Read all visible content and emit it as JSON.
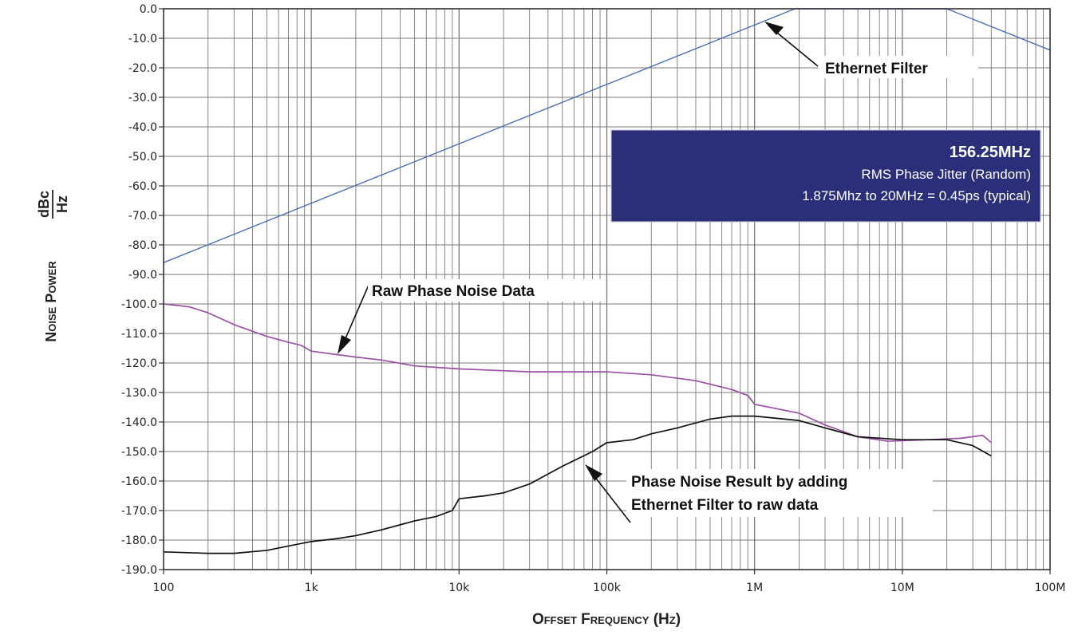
{
  "chart_data": {
    "type": "line",
    "xscale": "log",
    "xlim": [
      100,
      100000000
    ],
    "ylim": [
      -190,
      0
    ],
    "grid": true,
    "xlabel": "Offset Frequency (Hz)",
    "ylabel_main": "Noise Power",
    "ylabel_unit_num": "dBc",
    "ylabel_unit_den": "Hz",
    "x_tick_values": [
      100,
      1000,
      10000,
      100000,
      1000000,
      10000000,
      100000000
    ],
    "x_tick_labels": [
      "100",
      "1k",
      "10k",
      "100k",
      "1M",
      "10M",
      "100M"
    ],
    "y_tick_values": [
      0,
      -10,
      -20,
      -30,
      -40,
      -50,
      -60,
      -70,
      -80,
      -90,
      -100,
      -110,
      -120,
      -130,
      -140,
      -150,
      -160,
      -170,
      -180,
      -190
    ],
    "y_tick_labels": [
      "0.0",
      "-10.0",
      "-20.0",
      "-30.0",
      "-40.0",
      "-50.0",
      "-60.0",
      "-70.0",
      "-80.0",
      "-90.0",
      "-100.0",
      "-110.0",
      "-120.0",
      "-130.0",
      "-140.0",
      "-150.0",
      "-160.0",
      "-170.0",
      "-180.0",
      "-190.0"
    ],
    "series": [
      {
        "color": "#4a6fb5",
        "points": [
          [
            100,
            -86
          ],
          [
            1875000,
            0
          ],
          [
            20000000,
            0
          ],
          [
            100000000,
            -14
          ]
        ]
      },
      {
        "color": "#9b4fa6",
        "points": [
          [
            100,
            -100
          ],
          [
            150,
            -101
          ],
          [
            200,
            -103
          ],
          [
            300,
            -107
          ],
          [
            500,
            -111
          ],
          [
            700,
            -113
          ],
          [
            850,
            -114
          ],
          [
            1000,
            -116
          ],
          [
            2000,
            -118
          ],
          [
            3000,
            -119
          ],
          [
            5000,
            -121
          ],
          [
            10000,
            -122
          ],
          [
            30000,
            -123
          ],
          [
            100000,
            -123
          ],
          [
            200000,
            -124
          ],
          [
            400000,
            -126
          ],
          [
            700000,
            -129
          ],
          [
            900000,
            -131
          ],
          [
            1000000,
            -134
          ],
          [
            2000000,
            -137
          ],
          [
            3000000,
            -141
          ],
          [
            5000000,
            -145
          ],
          [
            8000000,
            -146.5
          ],
          [
            15000000,
            -146
          ],
          [
            25000000,
            -145.5
          ],
          [
            35000000,
            -144.5
          ],
          [
            40000000,
            -147
          ]
        ]
      },
      {
        "color": "#111111",
        "points": [
          [
            100,
            -184
          ],
          [
            200,
            -184.5
          ],
          [
            300,
            -184.5
          ],
          [
            500,
            -183.5
          ],
          [
            700,
            -182
          ],
          [
            1000,
            -180.5
          ],
          [
            1500,
            -179.5
          ],
          [
            2000,
            -178.5
          ],
          [
            3000,
            -176.5
          ],
          [
            5000,
            -173.5
          ],
          [
            7000,
            -172
          ],
          [
            9000,
            -170
          ],
          [
            10000,
            -166
          ],
          [
            15000,
            -165
          ],
          [
            20000,
            -164
          ],
          [
            30000,
            -161
          ],
          [
            50000,
            -155
          ],
          [
            80000,
            -150
          ],
          [
            100000,
            -147
          ],
          [
            150000,
            -146
          ],
          [
            200000,
            -144
          ],
          [
            300000,
            -142
          ],
          [
            500000,
            -139
          ],
          [
            700000,
            -138
          ],
          [
            1000000,
            -138
          ],
          [
            2000000,
            -139.5
          ],
          [
            3000000,
            -142
          ],
          [
            5000000,
            -145
          ],
          [
            10000000,
            -146
          ],
          [
            20000000,
            -146
          ],
          [
            30000000,
            -148
          ],
          [
            40000000,
            -151.5
          ]
        ]
      }
    ],
    "annotations": {
      "ethernet_filter": "Ethernet Filter",
      "raw_phase_noise": "Raw Phase Noise Data",
      "result_line1": "Phase Noise Result by adding",
      "result_line2": "Ethernet Filter to raw data"
    },
    "info_box": {
      "title": "156.25MHz",
      "line1": "RMS Phase Jitter  (Random)",
      "line2": "1.875Mhz to 20MHz = 0.45ps (typical)",
      "background": "#2b2f7a"
    }
  }
}
